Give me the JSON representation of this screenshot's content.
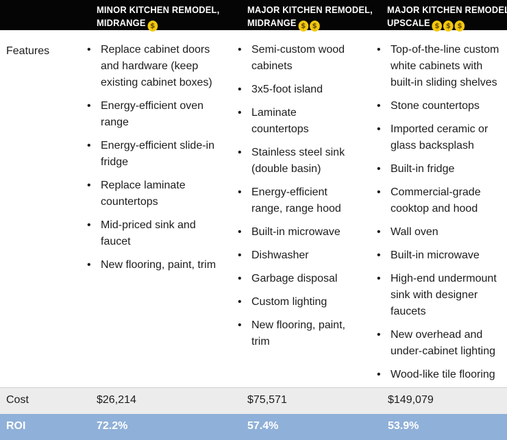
{
  "columns": [
    {
      "header_line1": "MINOR KITCHEN REMODEL,",
      "header_line2": "MIDRANGE",
      "coin_symbol": "$",
      "coin_count": 1,
      "features": [
        "Replace cabinet doors and hardware (keep existing cabinet boxes)",
        "Energy-efficient oven range",
        "Energy-efficient slide-in fridge",
        "Replace laminate countertops",
        "Mid-priced sink and faucet",
        "New flooring, paint, trim"
      ],
      "cost": "$26,214",
      "roi": "72.2%"
    },
    {
      "header_line1": "MAJOR KITCHEN REMODEL,",
      "header_line2": "MIDRANGE",
      "coin_symbol": "$",
      "coin_count": 2,
      "features": [
        "Semi-custom wood cabinets",
        "3x5-foot island",
        "Laminate countertops",
        "Stainless steel sink (double basin)",
        "Energy-efficient range, range hood",
        "Built-in microwave",
        "Dishwasher",
        "Garbage disposal",
        "Custom lighting",
        "New flooring, paint, trim"
      ],
      "cost": "$75,571",
      "roi": "57.4%"
    },
    {
      "header_line1": "MAJOR KITCHEN REMODEL,",
      "header_line2": "UPSCALE",
      "coin_symbol": "$",
      "coin_count": 3,
      "features": [
        "Top-of-the-line custom white cabinets with built-in sliding shelves",
        "Stone countertops",
        "Imported ceramic or glass backsplash",
        "Built-in fridge",
        "Commercial-grade cooktop and hood",
        "Wall oven",
        "Built-in microwave",
        "High-end undermount sink with designer faucets",
        "New overhead and under-cabinet lighting",
        "Wood-like tile flooring"
      ],
      "cost": "$149,079",
      "roi": "53.9%"
    }
  ],
  "row_labels": {
    "features": "Features",
    "cost": "Cost",
    "roi": "ROI"
  },
  "colors": {
    "header_bg": "#050505",
    "coin": "#f2c80f",
    "cost_bg": "#ececec",
    "roi_bg": "#8fb0d8"
  }
}
